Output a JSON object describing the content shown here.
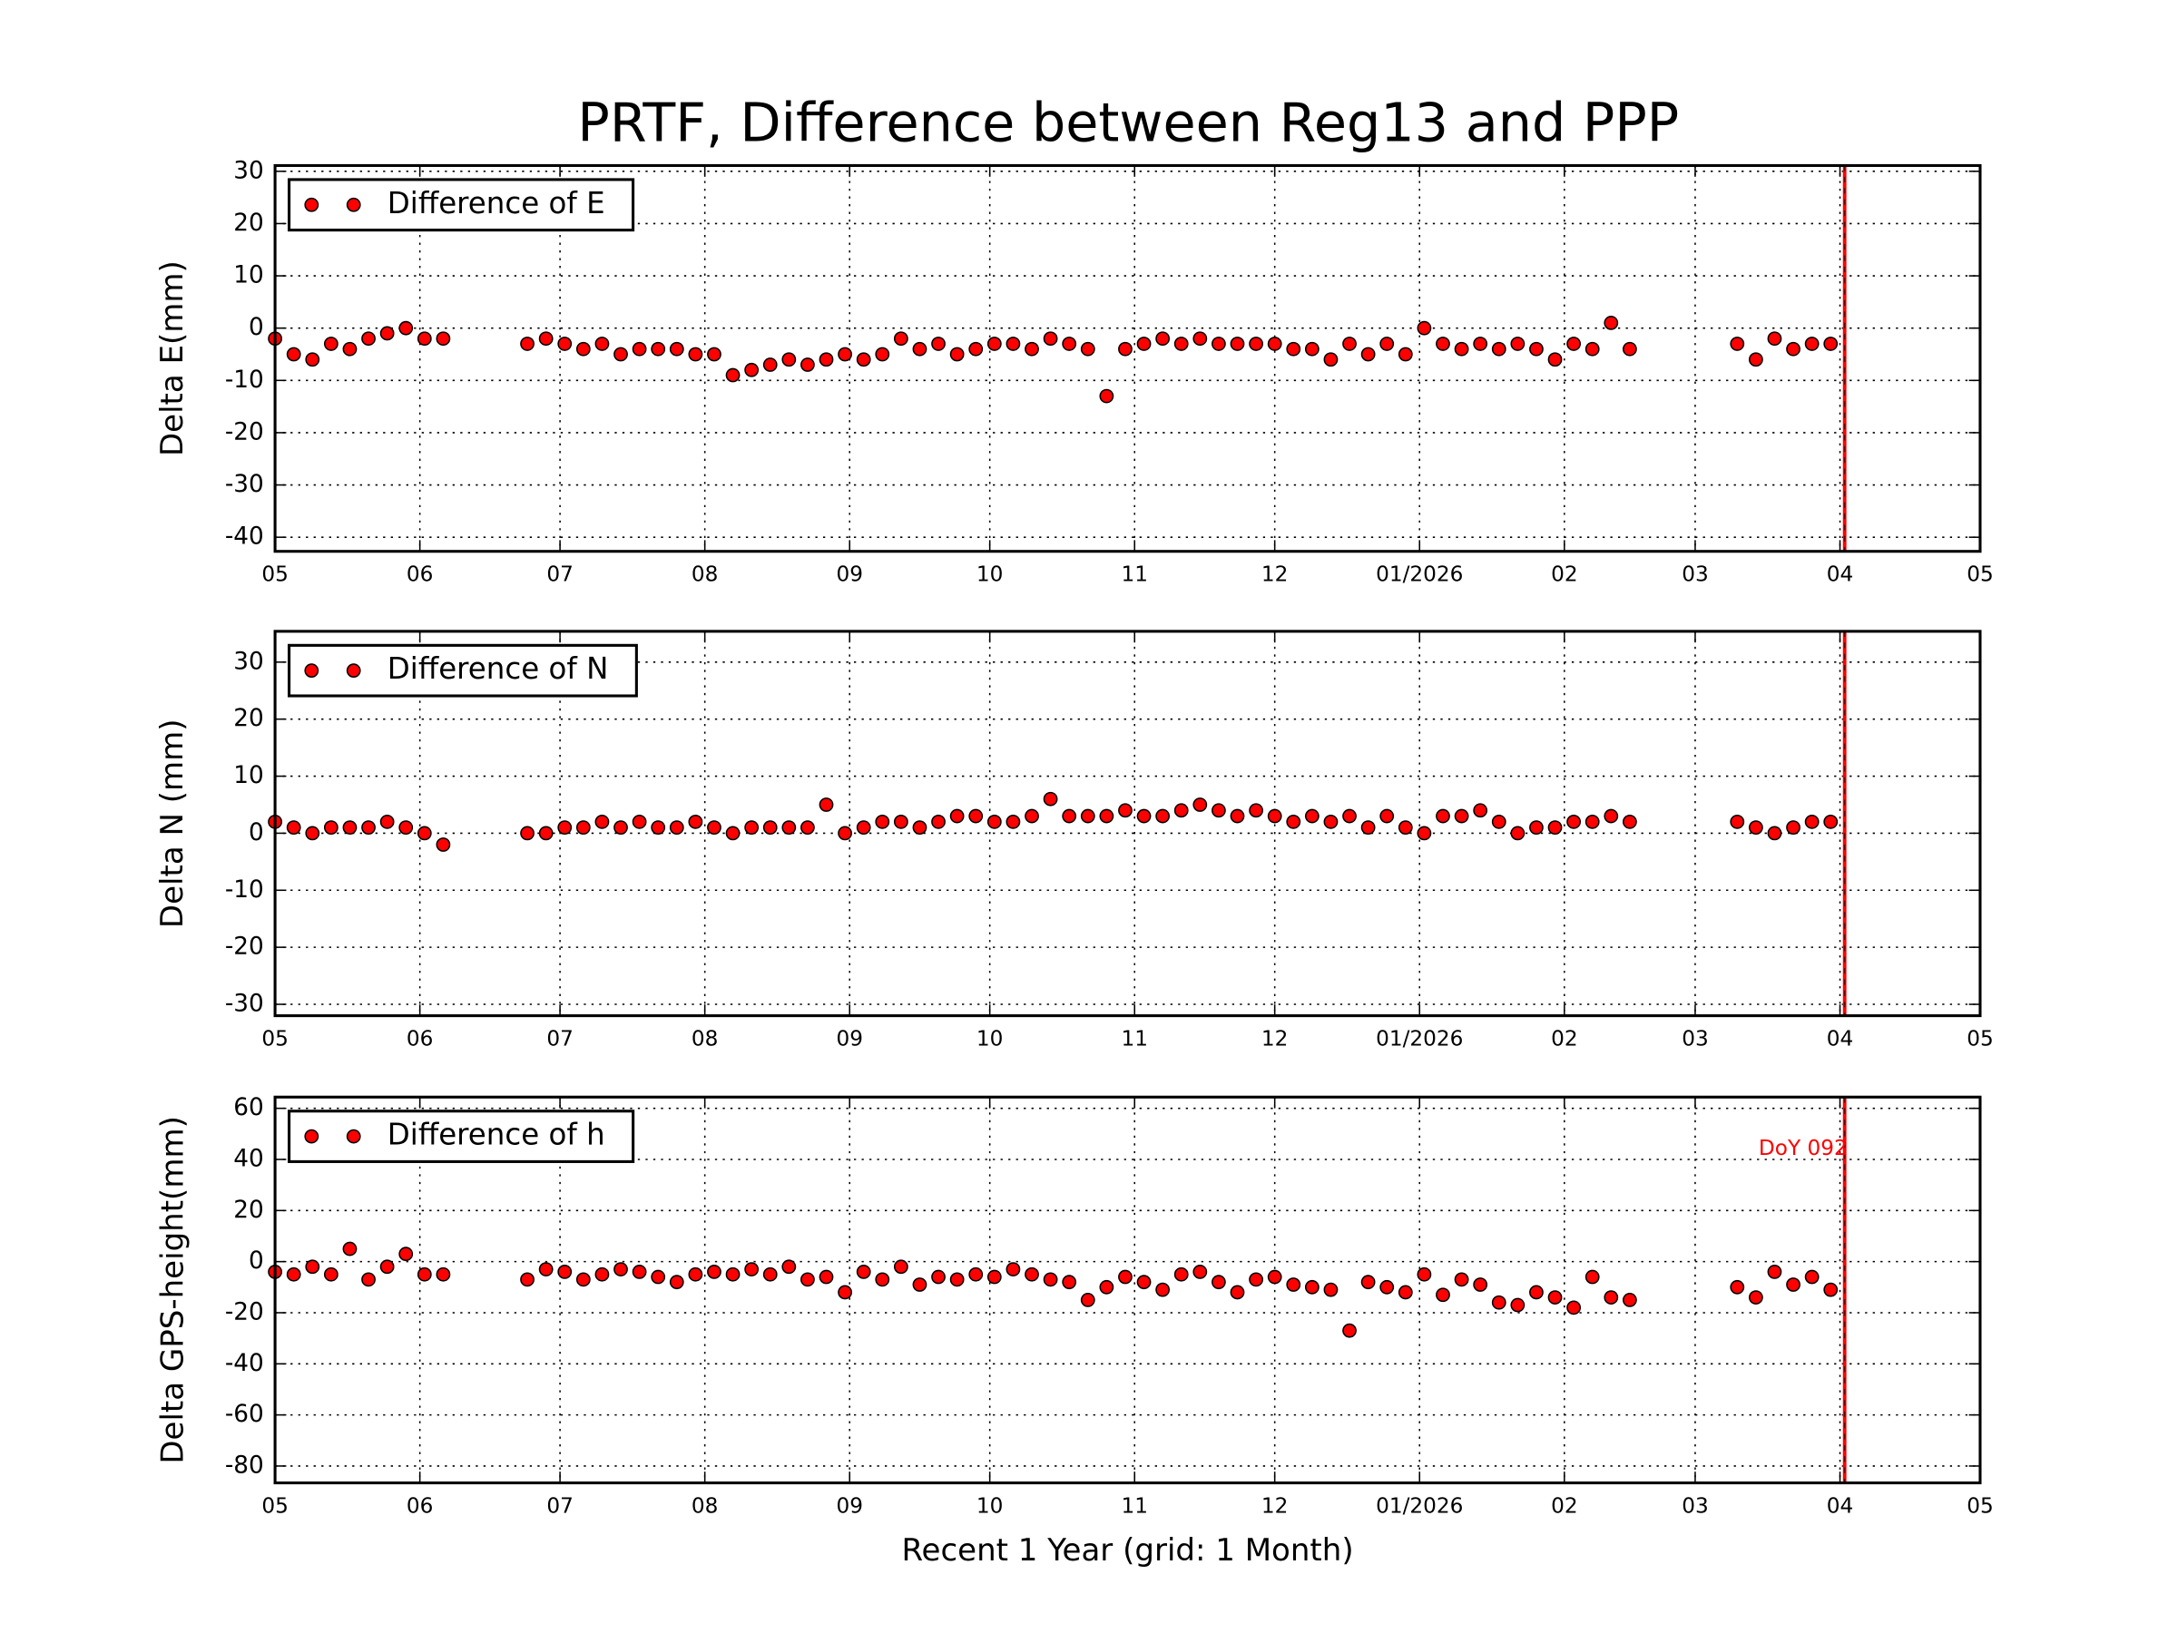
{
  "chart_data": [
    {
      "type": "scatter",
      "title": "PRTF, Difference between Reg13 and PPP",
      "ylabel": "Delta E(mm)",
      "x": [
        0,
        4,
        8,
        12,
        16,
        20,
        24,
        28,
        32,
        36,
        54,
        58,
        62,
        66,
        70,
        74,
        78,
        82,
        86,
        90,
        94,
        98,
        102,
        106,
        110,
        114,
        118,
        122,
        126,
        130,
        134,
        138,
        142,
        146,
        150,
        154,
        158,
        162,
        166,
        170,
        174,
        178,
        182,
        186,
        190,
        194,
        198,
        202,
        206,
        210,
        214,
        218,
        222,
        226,
        230,
        234,
        238,
        242,
        246,
        250,
        254,
        258,
        262,
        266,
        270,
        274,
        278,
        282,
        286,
        290,
        313,
        317,
        321,
        325,
        329,
        333
      ],
      "series": [
        {
          "name": "Difference of E",
          "color": "#ff0000",
          "values": [
            -2,
            -5,
            -6,
            -3,
            -4,
            -2,
            -1,
            0,
            -2,
            -2,
            -3,
            -2,
            -3,
            -4,
            -3,
            -5,
            -4,
            -4,
            -4,
            -5,
            -5,
            -9,
            -8,
            -7,
            -6,
            -7,
            -6,
            -5,
            -6,
            -5,
            -2,
            -4,
            -3,
            -5,
            -4,
            -3,
            -3,
            -4,
            -2,
            -3,
            -4,
            -13,
            -4,
            -3,
            -2,
            -3,
            -2,
            -3,
            -3,
            -3,
            -3,
            -4,
            -4,
            -6,
            -3,
            -5,
            -3,
            -5,
            0,
            -3,
            -4,
            -3,
            -4,
            -3,
            -4,
            -6,
            -3,
            -4,
            1,
            -4,
            -3,
            -6,
            -2,
            -4,
            -3,
            -3
          ]
        }
      ],
      "xlim": [
        0,
        365
      ],
      "xticks": [
        {
          "value": 0,
          "label": "05"
        },
        {
          "value": 31,
          "label": "06"
        },
        {
          "value": 61,
          "label": "07"
        },
        {
          "value": 92,
          "label": "08"
        },
        {
          "value": 123,
          "label": "09"
        },
        {
          "value": 153,
          "label": "10"
        },
        {
          "value": 184,
          "label": "11"
        },
        {
          "value": 214,
          "label": "12"
        },
        {
          "value": 245,
          "label": "01/2026"
        },
        {
          "value": 276,
          "label": "02"
        },
        {
          "value": 304,
          "label": "03"
        },
        {
          "value": 335,
          "label": "04"
        },
        {
          "value": 365,
          "label": "05"
        }
      ],
      "ylim": [
        -42.7,
        31.1
      ],
      "yticks": [
        -40,
        -30,
        -20,
        -10,
        0,
        10,
        20,
        30
      ],
      "grid": true,
      "legend": "upper left",
      "vline": 336,
      "vline_color": "#ff0000"
    },
    {
      "type": "scatter",
      "ylabel": "Delta N (mm)",
      "x": [
        0,
        4,
        8,
        12,
        16,
        20,
        24,
        28,
        32,
        36,
        54,
        58,
        62,
        66,
        70,
        74,
        78,
        82,
        86,
        90,
        94,
        98,
        102,
        106,
        110,
        114,
        118,
        122,
        126,
        130,
        134,
        138,
        142,
        146,
        150,
        154,
        158,
        162,
        166,
        170,
        174,
        178,
        182,
        186,
        190,
        194,
        198,
        202,
        206,
        210,
        214,
        218,
        222,
        226,
        230,
        234,
        238,
        242,
        246,
        250,
        254,
        258,
        262,
        266,
        270,
        274,
        278,
        282,
        286,
        290,
        313,
        317,
        321,
        325,
        329,
        333
      ],
      "series": [
        {
          "name": "Difference of N",
          "color": "#ff0000",
          "values": [
            2,
            1,
            0,
            1,
            1,
            1,
            2,
            1,
            0,
            -2,
            0,
            0,
            1,
            1,
            2,
            1,
            2,
            1,
            1,
            2,
            1,
            0,
            1,
            1,
            1,
            1,
            5,
            0,
            1,
            2,
            2,
            1,
            2,
            3,
            3,
            2,
            2,
            3,
            6,
            3,
            3,
            3,
            4,
            3,
            3,
            4,
            5,
            4,
            3,
            4,
            3,
            2,
            3,
            2,
            3,
            1,
            3,
            1,
            0,
            3,
            3,
            4,
            2,
            0,
            1,
            1,
            2,
            2,
            3,
            2,
            2,
            1,
            0,
            1,
            2,
            2
          ]
        }
      ],
      "xlim": [
        0,
        365
      ],
      "xticks": [
        {
          "value": 0,
          "label": "05"
        },
        {
          "value": 31,
          "label": "06"
        },
        {
          "value": 61,
          "label": "07"
        },
        {
          "value": 92,
          "label": "08"
        },
        {
          "value": 123,
          "label": "09"
        },
        {
          "value": 153,
          "label": "10"
        },
        {
          "value": 184,
          "label": "11"
        },
        {
          "value": 214,
          "label": "12"
        },
        {
          "value": 245,
          "label": "01/2026"
        },
        {
          "value": 276,
          "label": "02"
        },
        {
          "value": 304,
          "label": "03"
        },
        {
          "value": 335,
          "label": "04"
        },
        {
          "value": 365,
          "label": "05"
        }
      ],
      "ylim": [
        -32,
        35.4
      ],
      "yticks": [
        -30,
        -20,
        -10,
        0,
        10,
        20,
        30
      ],
      "grid": true,
      "legend": "upper left",
      "vline": 336,
      "vline_color": "#ff0000"
    },
    {
      "type": "scatter",
      "ylabel": "Delta GPS-height(mm)",
      "xlabel": "Recent 1 Year (grid: 1 Month)",
      "x": [
        0,
        4,
        8,
        12,
        16,
        20,
        24,
        28,
        32,
        36,
        54,
        58,
        62,
        66,
        70,
        74,
        78,
        82,
        86,
        90,
        94,
        98,
        102,
        106,
        110,
        114,
        118,
        122,
        126,
        130,
        134,
        138,
        142,
        146,
        150,
        154,
        158,
        162,
        166,
        170,
        174,
        178,
        182,
        186,
        190,
        194,
        198,
        202,
        206,
        210,
        214,
        218,
        222,
        226,
        230,
        234,
        238,
        242,
        246,
        250,
        254,
        258,
        262,
        266,
        270,
        274,
        278,
        282,
        286,
        290,
        313,
        317,
        321,
        325,
        329,
        333
      ],
      "series": [
        {
          "name": "Difference of h",
          "color": "#ff0000",
          "values": [
            -4,
            -5,
            -2,
            -5,
            5,
            -7,
            -2,
            3,
            -5,
            -5,
            -7,
            -3,
            -4,
            -7,
            -5,
            -3,
            -4,
            -6,
            -8,
            -5,
            -4,
            -5,
            -3,
            -5,
            -2,
            -7,
            -6,
            -12,
            -4,
            -7,
            -2,
            -9,
            -6,
            -7,
            -5,
            -6,
            -3,
            -5,
            -7,
            -8,
            -15,
            -10,
            -6,
            -8,
            -11,
            -5,
            -4,
            -8,
            -12,
            -7,
            -6,
            -9,
            -10,
            -11,
            -27,
            -8,
            -10,
            -12,
            -5,
            -13,
            -7,
            -9,
            -16,
            -17,
            -12,
            -14,
            -18,
            -6,
            -14,
            -15,
            -10,
            -14,
            -4,
            -9,
            -6,
            -11
          ]
        }
      ],
      "xlim": [
        0,
        365
      ],
      "xticks": [
        {
          "value": 0,
          "label": "05"
        },
        {
          "value": 31,
          "label": "06"
        },
        {
          "value": 61,
          "label": "07"
        },
        {
          "value": 92,
          "label": "08"
        },
        {
          "value": 123,
          "label": "09"
        },
        {
          "value": 153,
          "label": "10"
        },
        {
          "value": 184,
          "label": "11"
        },
        {
          "value": 214,
          "label": "12"
        },
        {
          "value": 245,
          "label": "01/2026"
        },
        {
          "value": 276,
          "label": "02"
        },
        {
          "value": 304,
          "label": "03"
        },
        {
          "value": 335,
          "label": "04"
        },
        {
          "value": 365,
          "label": "05"
        }
      ],
      "ylim": [
        -86.6,
        64.4
      ],
      "yticks": [
        -80,
        -60,
        -40,
        -20,
        0,
        20,
        40,
        60
      ],
      "grid": true,
      "legend": "upper left",
      "vline": 336,
      "vline_color": "#ff0000",
      "annotation": "DoY 092"
    }
  ]
}
